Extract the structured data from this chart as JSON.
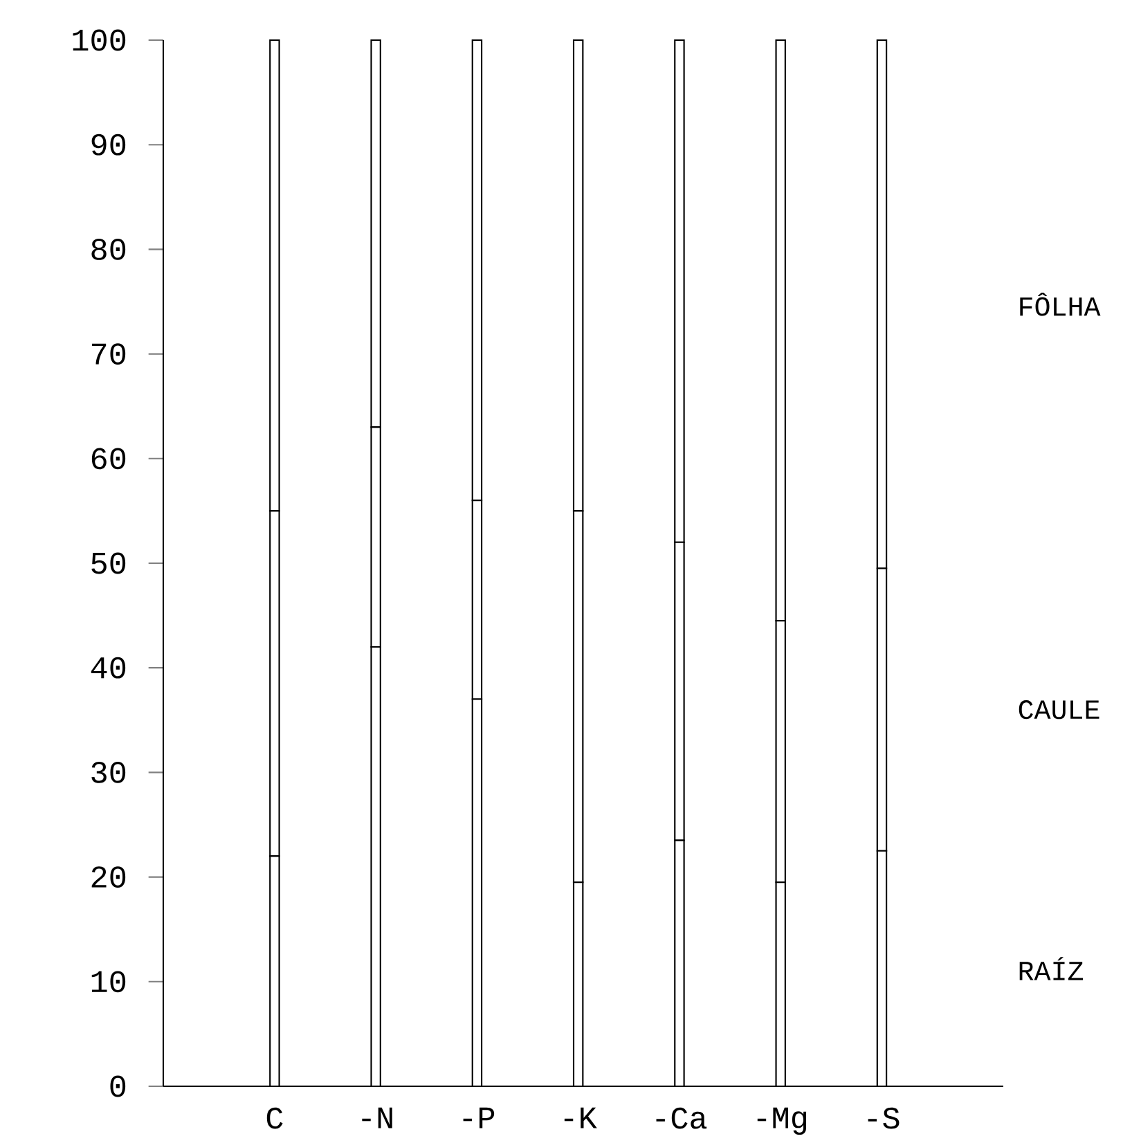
{
  "chart_data": {
    "type": "bar",
    "stacked": true,
    "categories": [
      "C",
      "-N",
      "-P",
      "-K",
      "-Ca",
      "-Mg",
      "-S"
    ],
    "series": [
      {
        "name": "RAÍZ",
        "color": "#000000",
        "values": [
          22,
          42,
          37,
          19.5,
          23.5,
          19.5,
          22.5
        ]
      },
      {
        "name": "CAULE",
        "color": "#000000",
        "values": [
          33,
          21,
          19,
          35.5,
          28.5,
          25,
          27
        ]
      },
      {
        "name": "FÔLHA",
        "color": "#000000",
        "values": [
          45,
          37,
          44,
          45,
          48,
          55.5,
          50.5
        ]
      }
    ],
    "ylim": [
      0,
      100
    ],
    "yticks": [
      0,
      10,
      20,
      30,
      40,
      50,
      60,
      70,
      80,
      90,
      100
    ],
    "grid": false,
    "legend": false
  }
}
